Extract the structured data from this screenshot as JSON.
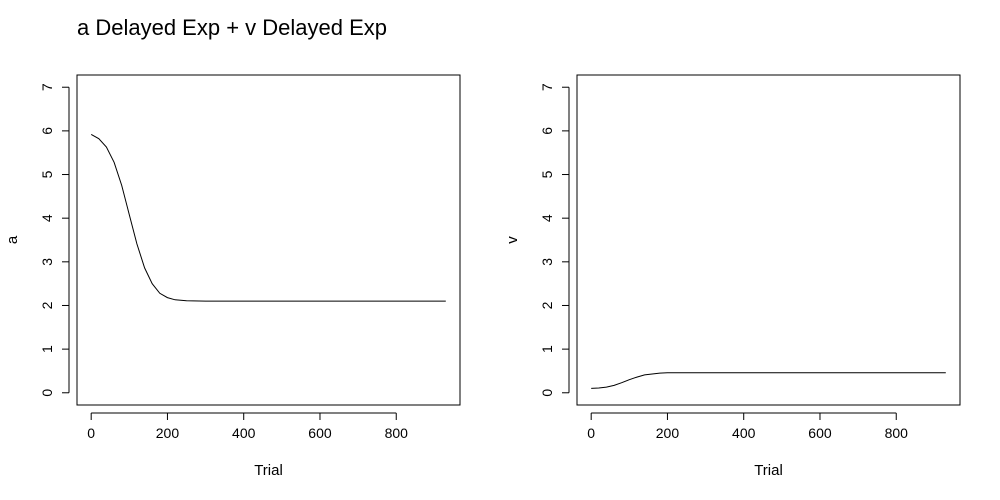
{
  "figure": {
    "title": "a Delayed Exp + v Delayed Exp"
  },
  "colors": {
    "line": "#000000",
    "background": "#ffffff"
  },
  "chart_data": [
    {
      "type": "line",
      "title": "",
      "xlabel": "Trial",
      "ylabel": "a",
      "xlim": [
        0,
        930
      ],
      "ylim": [
        0,
        7
      ],
      "xticks": [
        0,
        200,
        400,
        600,
        800
      ],
      "yticks": [
        0,
        1,
        2,
        3,
        4,
        5,
        6,
        7
      ],
      "grid": false,
      "legend": "none",
      "series": [
        {
          "x": [
            0,
            20,
            40,
            60,
            80,
            100,
            120,
            140,
            160,
            180,
            200,
            220,
            250,
            300,
            350,
            400,
            500,
            600,
            700,
            800,
            930
          ],
          "y": [
            5.92,
            5.82,
            5.63,
            5.28,
            4.75,
            4.08,
            3.41,
            2.86,
            2.5,
            2.28,
            2.18,
            2.13,
            2.11,
            2.1,
            2.1,
            2.1,
            2.1,
            2.1,
            2.1,
            2.1,
            2.1
          ]
        }
      ]
    },
    {
      "type": "line",
      "title": "",
      "xlabel": "Trial",
      "ylabel": "v",
      "xlim": [
        0,
        930
      ],
      "ylim": [
        0,
        7
      ],
      "xticks": [
        0,
        200,
        400,
        600,
        800
      ],
      "yticks": [
        0,
        1,
        2,
        3,
        4,
        5,
        6,
        7
      ],
      "grid": false,
      "legend": "none",
      "series": [
        {
          "x": [
            0,
            20,
            40,
            60,
            80,
            100,
            120,
            140,
            160,
            180,
            200,
            250,
            300,
            400,
            500,
            600,
            700,
            800,
            930
          ],
          "y": [
            0.1,
            0.11,
            0.13,
            0.17,
            0.23,
            0.3,
            0.36,
            0.41,
            0.43,
            0.45,
            0.46,
            0.46,
            0.46,
            0.46,
            0.46,
            0.46,
            0.46,
            0.46,
            0.46
          ]
        }
      ]
    }
  ]
}
